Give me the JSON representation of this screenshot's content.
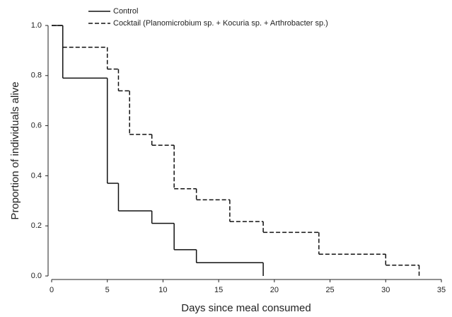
{
  "chart_data": {
    "type": "step",
    "xlabel": "Days since meal consumed",
    "ylabel": "Proportion of individuals alive",
    "xlim": [
      0,
      35
    ],
    "xticks": [
      0,
      5,
      10,
      15,
      20,
      25,
      30,
      35
    ],
    "ylim": [
      0,
      1
    ],
    "yticks": [
      {
        "value": 0,
        "label": "0.0"
      },
      0.2,
      0.4,
      0.6,
      0.8,
      {
        "value": 1,
        "label": "1.0"
      }
    ],
    "series": [
      {
        "name": "Control",
        "color": "#111111",
        "dash": "solid",
        "x": [
          0,
          1,
          5,
          6,
          9,
          11,
          13,
          19
        ],
        "values": [
          1.0,
          0.79,
          0.37,
          0.26,
          0.21,
          0.105,
          0.053,
          0
        ]
      },
      {
        "name": "Cocktail (Planomicrobium sp. + Kocuria sp. + Arthrobacter sp.)",
        "color": "#111111",
        "dash": "dashed",
        "x": [
          0,
          1,
          5,
          6,
          7,
          9,
          11,
          13,
          16,
          19,
          24,
          30,
          33
        ],
        "values": [
          1.0,
          0.913,
          0.826,
          0.739,
          0.565,
          0.522,
          0.348,
          0.304,
          0.217,
          0.174,
          0.087,
          0.043,
          0
        ]
      }
    ]
  }
}
